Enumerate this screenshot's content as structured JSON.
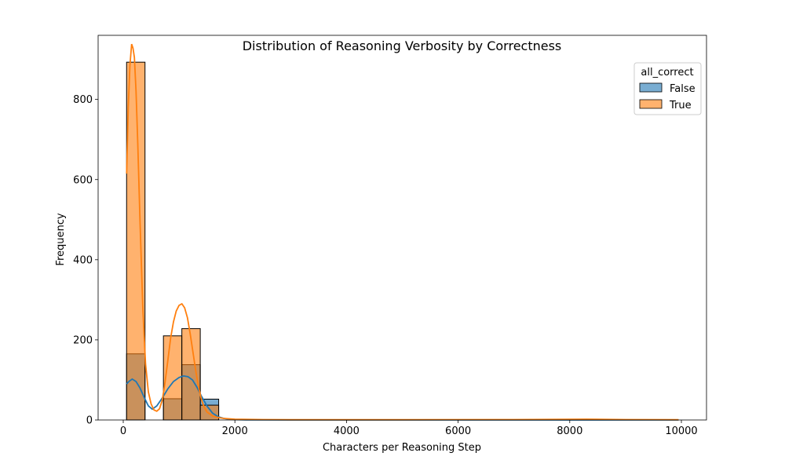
{
  "chart_data": {
    "type": "bar",
    "title": "Distribution of Reasoning Verbosity by Correctness",
    "xlabel": "Characters per Reasoning Step",
    "ylabel": "Frequency",
    "xlim": [
      -450,
      10450
    ],
    "ylim": [
      0,
      960
    ],
    "xticks": [
      0,
      2000,
      4000,
      6000,
      8000,
      10000
    ],
    "yticks": [
      0,
      200,
      400,
      600,
      800
    ],
    "bin_edges": [
      60,
      390,
      720,
      1050,
      1380,
      1710
    ],
    "legend": {
      "title": "all_correct",
      "position": "top-right"
    },
    "series": [
      {
        "name": "False",
        "color": "#1f77b4",
        "counts": [
          165,
          0,
          53,
          138,
          52
        ],
        "kde": [
          [
            60,
            90
          ],
          [
            100,
            96
          ],
          [
            160,
            102
          ],
          [
            230,
            96
          ],
          [
            300,
            80
          ],
          [
            380,
            55
          ],
          [
            450,
            35
          ],
          [
            520,
            27
          ],
          [
            600,
            35
          ],
          [
            700,
            55
          ],
          [
            800,
            78
          ],
          [
            900,
            96
          ],
          [
            1000,
            106
          ],
          [
            1080,
            110
          ],
          [
            1160,
            108
          ],
          [
            1240,
            100
          ],
          [
            1320,
            82
          ],
          [
            1400,
            60
          ],
          [
            1500,
            35
          ],
          [
            1600,
            17
          ],
          [
            1700,
            8
          ],
          [
            1800,
            4
          ],
          [
            1900,
            2
          ],
          [
            2000,
            1
          ],
          [
            2200,
            0.3
          ],
          [
            3000,
            0
          ],
          [
            8000,
            0
          ],
          [
            9950,
            0
          ]
        ]
      },
      {
        "name": "True",
        "color": "#ff7f0e",
        "counts": [
          893,
          0,
          210,
          228,
          37
        ],
        "kde": [
          [
            60,
            615
          ],
          [
            90,
            780
          ],
          [
            120,
            885
          ],
          [
            150,
            938
          ],
          [
            175,
            928
          ],
          [
            200,
            905
          ],
          [
            230,
            820
          ],
          [
            260,
            690
          ],
          [
            300,
            500
          ],
          [
            350,
            280
          ],
          [
            400,
            140
          ],
          [
            450,
            70
          ],
          [
            500,
            40
          ],
          [
            550,
            25
          ],
          [
            600,
            22
          ],
          [
            650,
            28
          ],
          [
            700,
            50
          ],
          [
            750,
            95
          ],
          [
            800,
            150
          ],
          [
            850,
            205
          ],
          [
            900,
            245
          ],
          [
            950,
            272
          ],
          [
            1000,
            286
          ],
          [
            1050,
            290
          ],
          [
            1100,
            280
          ],
          [
            1150,
            255
          ],
          [
            1200,
            215
          ],
          [
            1250,
            168
          ],
          [
            1300,
            122
          ],
          [
            1350,
            82
          ],
          [
            1400,
            52
          ],
          [
            1450,
            32
          ],
          [
            1500,
            20
          ],
          [
            1600,
            10
          ],
          [
            1700,
            6
          ],
          [
            1800,
            4
          ],
          [
            1900,
            3
          ],
          [
            2000,
            2
          ],
          [
            2500,
            1
          ],
          [
            3000,
            0.5
          ],
          [
            5000,
            0.5
          ],
          [
            7000,
            1
          ],
          [
            8300,
            2
          ],
          [
            9000,
            1
          ],
          [
            9950,
            0.5
          ]
        ]
      }
    ]
  }
}
